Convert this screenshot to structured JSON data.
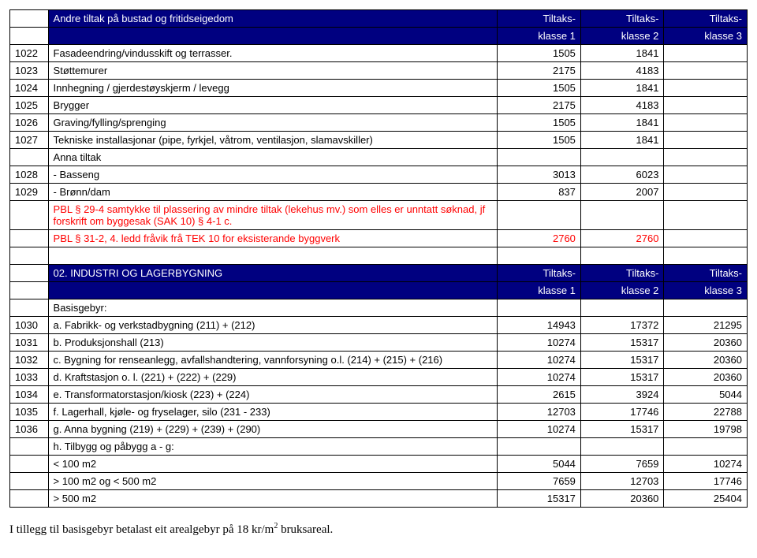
{
  "colors": {
    "header_bg": "#000080",
    "header_fg": "#ffffff",
    "highlight_text": "#ff0000",
    "border": "#000000",
    "background": "#ffffff",
    "text": "#000000"
  },
  "column_headers": {
    "c1_line1": "Tiltaks-",
    "c1_line2": "klasse 1",
    "c2_line1": "Tiltaks-",
    "c2_line2": "klasse 2",
    "c3_line1": "Tiltaks-",
    "c3_line2": "klasse 3"
  },
  "section1": {
    "title": "Andre tiltak på bustad og fritidseigedom",
    "rows": [
      {
        "id": "1022",
        "desc": "Fasadeendring/vindusskift og terrasser.",
        "v1": "1505",
        "v2": "1841",
        "v3": ""
      },
      {
        "id": "1023",
        "desc": "Støttemurer",
        "v1": "2175",
        "v2": "4183",
        "v3": ""
      },
      {
        "id": "1024",
        "desc": "Innhegning / gjerdestøyskjerm / levegg",
        "v1": "1505",
        "v2": "1841",
        "v3": ""
      },
      {
        "id": "1025",
        "desc": "Brygger",
        "v1": "2175",
        "v2": "4183",
        "v3": ""
      },
      {
        "id": "1026",
        "desc": "Graving/fylling/sprenging",
        "v1": "1505",
        "v2": "1841",
        "v3": ""
      },
      {
        "id": "1027",
        "desc": "Tekniske installasjonar (pipe, fyrkjel, våtrom, ventilasjon, slamavskiller)",
        "v1": "1505",
        "v2": "1841",
        "v3": ""
      },
      {
        "id": "",
        "desc": "Anna tiltak",
        "v1": "",
        "v2": "",
        "v3": ""
      },
      {
        "id": "1028",
        "desc": "- Basseng",
        "v1": "3013",
        "v2": "6023",
        "v3": ""
      },
      {
        "id": "1029",
        "desc": "- Brønn/dam",
        "v1": "837",
        "v2": "2007",
        "v3": ""
      },
      {
        "id": "",
        "desc_red": "PBL § 29-4 samtykke til plassering av mindre tiltak (lekehus mv.) som elles er unntatt søknad, jf forskrift om byggesak (SAK 10) § 4-1 c.",
        "v1": "",
        "v2": "",
        "v3": "",
        "red": true
      },
      {
        "id": "",
        "desc_red": "PBL § 31-2, 4. ledd fråvik frå TEK 10 for eksisterande byggverk",
        "v1": "2760",
        "v2": "2760",
        "v3": "",
        "red": true
      }
    ]
  },
  "section2": {
    "title": "02. INDUSTRI OG LAGERBYGNING",
    "basis_label": "Basisgebyr:",
    "rows": [
      {
        "id": "1030",
        "desc": "a. Fabrikk- og verkstadbygning (211) + (212)",
        "v1": "14943",
        "v2": "17372",
        "v3": "21295"
      },
      {
        "id": "1031",
        "desc": "b. Produksjonshall (213)",
        "v1": "10274",
        "v2": "15317",
        "v3": "20360"
      },
      {
        "id": "1032",
        "desc": "c. Bygning for renseanlegg, avfallshandtering, vannforsyning o.l. (214) + (215) + (216)",
        "v1": "10274",
        "v2": "15317",
        "v3": "20360"
      },
      {
        "id": "1033",
        "desc": "d. Kraftstasjon o. l. (221) + (222) + (229)",
        "v1": "10274",
        "v2": "15317",
        "v3": "20360"
      },
      {
        "id": "1034",
        "desc": "e. Transformatorstasjon/kiosk (223) + (224)",
        "v1": "2615",
        "v2": "3924",
        "v3": "5044"
      },
      {
        "id": "1035",
        "desc": "f. Lagerhall, kjøle- og fryselager, silo (231 - 233)",
        "v1": "12703",
        "v2": "17746",
        "v3": "22788"
      },
      {
        "id": "1036",
        "desc": "g. Anna bygning (219) + (229) + (239) + (290)",
        "v1": "10274",
        "v2": "15317",
        "v3": "19798"
      },
      {
        "id": "",
        "desc": "h. Tilbygg og påbygg a - g:",
        "v1": "",
        "v2": "",
        "v3": ""
      },
      {
        "id": "",
        "desc": "< 100 m2",
        "v1": "5044",
        "v2": "7659",
        "v3": "10274"
      },
      {
        "id": "",
        "desc": "> 100 m2 og < 500 m2",
        "v1": "7659",
        "v2": "12703",
        "v3": "17746"
      },
      {
        "id": "",
        "desc": "> 500 m2",
        "v1": "15317",
        "v2": "20360",
        "v3": "25404"
      }
    ]
  },
  "footer": {
    "prefix": "I tillegg til basisgebyr betalast eit arealgebyr på 18 kr/m",
    "exp": "2",
    "suffix": " bruksareal."
  }
}
